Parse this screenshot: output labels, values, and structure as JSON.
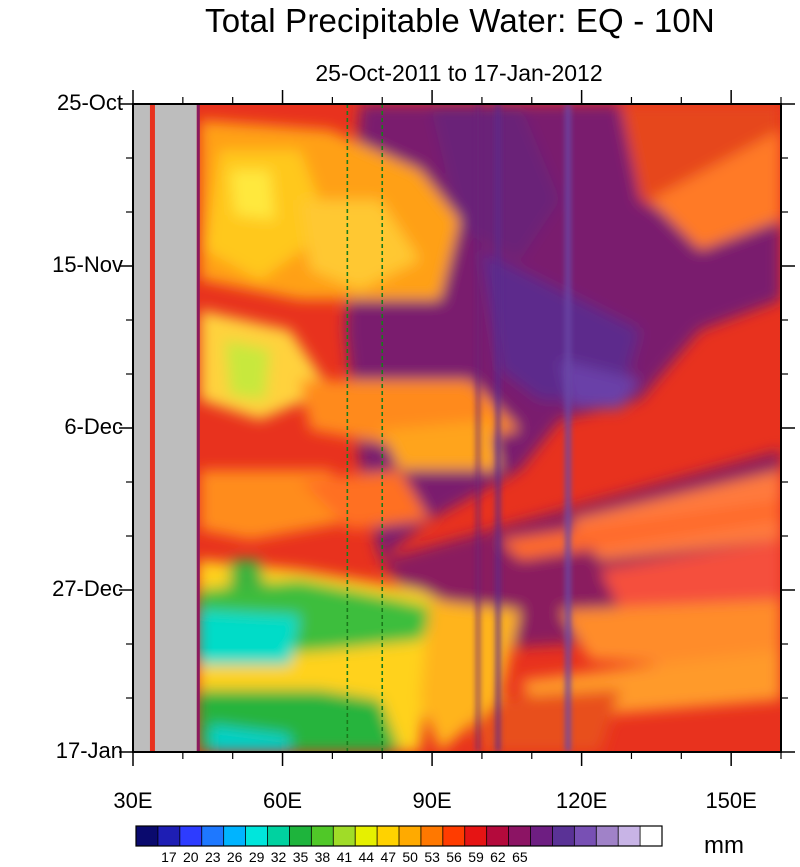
{
  "chart_data": {
    "type": "heatmap",
    "title": "Total Precipitable Water: EQ - 10N",
    "subtitle": "25-Oct-2011 to 17-Jan-2012",
    "x_axis": {
      "range": [
        30,
        160
      ],
      "ticks": [
        30,
        60,
        90,
        120,
        150
      ],
      "tick_labels": [
        "30E",
        "60E",
        "90E",
        "120E",
        "150E"
      ]
    },
    "y_axis": {
      "range": [
        "2011-10-25",
        "2012-01-17"
      ],
      "ticks": [
        "2011-10-25",
        "2011-11-15",
        "2011-12-06",
        "2011-12-27",
        "2012-01-17"
      ],
      "tick_labels": [
        "25-Oct",
        "15-Nov",
        "6-Dec",
        "27-Dec",
        "17-Jan"
      ]
    },
    "colorbar": {
      "unit": "mm",
      "levels": [
        17,
        20,
        23,
        26,
        29,
        32,
        35,
        38,
        41,
        44,
        47,
        50,
        53,
        56,
        59,
        62,
        65
      ],
      "colors": [
        "#0a0a6e",
        "#1e1eb4",
        "#2d3cff",
        "#1e78ff",
        "#00b4ff",
        "#00e6dc",
        "#00d2a0",
        "#1eb43c",
        "#50c828",
        "#a0dc28",
        "#e6f000",
        "#ffd200",
        "#ffaa00",
        "#ff7800",
        "#ff3c00",
        "#e61414",
        "#b40a3c",
        "#8c1464",
        "#6e1e82",
        "#5a3296",
        "#7850b4",
        "#a082c8",
        "#c8b4e6",
        "#ffffff"
      ]
    },
    "missing_band_x": [
      33,
      43
    ],
    "reference_lines_x": [
      73,
      80
    ],
    "features": [
      {
        "region": "40E-75E",
        "dates": "2011-12-22 to 2012-01-17",
        "tpw_mm": "26-38",
        "note": "dry cyan/green area"
      },
      {
        "region": "45E-90E",
        "dates": "2011-10-28 to 2011-11-18",
        "tpw_mm": "44-50",
        "note": "yellow/orange area"
      },
      {
        "region": "90E-125E",
        "dates": "2011-10-25 to 2012-01-17",
        "tpw_mm": "56-62",
        "note": "moist purple area"
      },
      {
        "region": "120E-160E",
        "dates": "2011-12-15 to 2012-01-17",
        "tpw_mm": "47-53",
        "note": "eastward-propagating orange bands"
      }
    ]
  }
}
